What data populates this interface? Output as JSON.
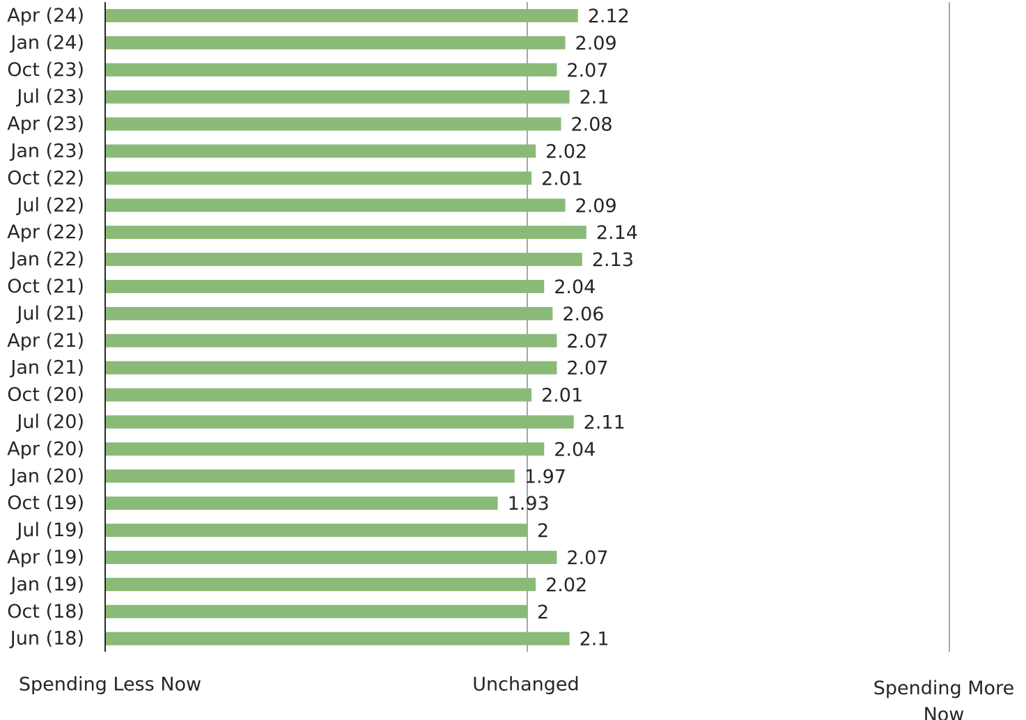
{
  "chart_data": {
    "type": "bar",
    "orientation": "horizontal",
    "categories": [
      "Apr (24)",
      "Jan (24)",
      "Oct (23)",
      "Jul (23)",
      "Apr (23)",
      "Jan (23)",
      "Oct (22)",
      "Jul (22)",
      "Apr (22)",
      "Jan (22)",
      "Oct (21)",
      "Jul (21)",
      "Apr (21)",
      "Jan (21)",
      "Oct (20)",
      "Jul (20)",
      "Apr (20)",
      "Jan (20)",
      "Oct (19)",
      "Jul (19)",
      "Apr (19)",
      "Jan (19)",
      "Oct (18)",
      "Jun (18)"
    ],
    "values": [
      2.12,
      2.09,
      2.07,
      2.1,
      2.08,
      2.02,
      2.01,
      2.09,
      2.14,
      2.13,
      2.04,
      2.06,
      2.07,
      2.07,
      2.01,
      2.11,
      2.04,
      1.97,
      1.93,
      2,
      2.07,
      2.02,
      2,
      2.1
    ],
    "value_labels": [
      "2.12",
      "2.09",
      "2.07",
      "2.1",
      "2.08",
      "2.02",
      "2.01",
      "2.09",
      "2.14",
      "2.13",
      "2.04",
      "2.06",
      "2.07",
      "2.07",
      "2.01",
      "2.11",
      "2.04",
      "1.97",
      "1.93",
      "2",
      "2.07",
      "2.02",
      "2",
      "2.1"
    ],
    "xlim": [
      1,
      3
    ],
    "xticks": [
      1,
      2,
      3
    ],
    "xtick_labels": [
      "Spending Less Now",
      "Unchanged",
      "Spending More Now"
    ],
    "bar_color": "#8aba78",
    "gridlines": "vertical",
    "legend": "none",
    "title": "",
    "xlabel": "",
    "ylabel": ""
  }
}
